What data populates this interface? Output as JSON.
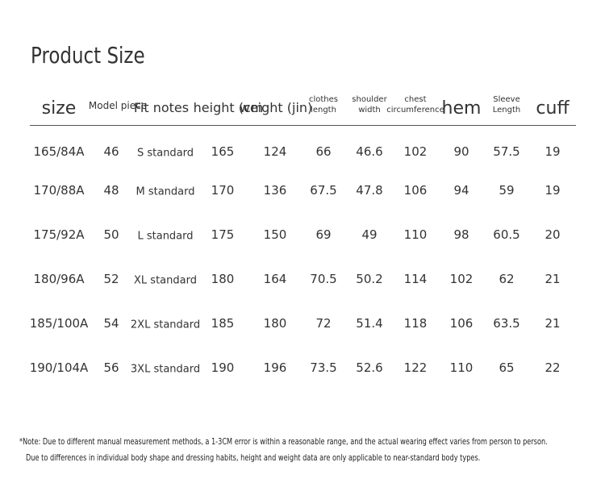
{
  "title": "Product Size",
  "table": {
    "headers": [
      [
        "size"
      ],
      [
        "Model piece"
      ],
      [
        "Fit notes"
      ],
      [
        "height (cm"
      ],
      [
        "weight (jin)"
      ],
      [
        "clothes",
        "length"
      ],
      [
        "shoulder",
        "width"
      ],
      [
        "chest",
        "circumference"
      ],
      [
        "hem"
      ],
      [
        "Sleeve",
        "Length"
      ],
      [
        "cuff"
      ]
    ],
    "rows": [
      [
        "165/84A",
        "46",
        "S standard",
        "165",
        "124",
        "66",
        "46.6",
        "102",
        "90",
        "57.5",
        "19"
      ],
      [
        "170/88A",
        "48",
        "M standard",
        "170",
        "136",
        "67.5",
        "47.8",
        "106",
        "94",
        "59",
        "19"
      ],
      [
        "175/92A",
        "50",
        "L standard",
        "175",
        "150",
        "69",
        "49",
        "110",
        "98",
        "60.5",
        "20"
      ],
      [
        "180/96A",
        "52",
        "XL standard",
        "180",
        "164",
        "70.5",
        "50.2",
        "114",
        "102",
        "62",
        "21"
      ],
      [
        "185/100A",
        "54",
        "2XL standard",
        "185",
        "180",
        "72",
        "51.4",
        "118",
        "106",
        "63.5",
        "21"
      ],
      [
        "190/104A",
        "56",
        "3XL standard",
        "190",
        "196",
        "73.5",
        "52.6",
        "122",
        "110",
        "65",
        "22"
      ]
    ]
  },
  "notes": [
    "*Note: Due to different manual measurement methods, a 1-3CM error is within a reasonable range, and the actual wearing effect varies from person to person.",
    "Due to differences in individual body shape and dressing habits, height and weight data are only applicable to near-standard body types."
  ]
}
